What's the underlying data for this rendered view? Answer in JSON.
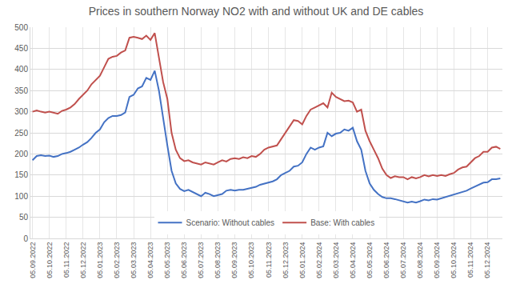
{
  "chart_data": {
    "type": "line",
    "title": "Prices in southern Norway NO2 with and without UK and DE cables",
    "categories": [
      "05.09.2022",
      null,
      null,
      null,
      "05.10.2022",
      null,
      null,
      null,
      "05.11.2022",
      null,
      null,
      null,
      "05.12.2022",
      null,
      null,
      null,
      "05.01.2023",
      null,
      null,
      null,
      "05.02.2023",
      null,
      null,
      null,
      "05.03.2023",
      null,
      null,
      null,
      "05.04.2023",
      null,
      null,
      null,
      "05.05.2023",
      null,
      null,
      null,
      "05.06.2023",
      null,
      null,
      null,
      "05.07.2023",
      null,
      null,
      null,
      "05.08.2023",
      null,
      null,
      null,
      "05.09.2023",
      null,
      null,
      null,
      "05.10.2023",
      null,
      null,
      null,
      "05.11.2023",
      null,
      null,
      null,
      "05.12.2023",
      null,
      null,
      null,
      "05.01.2024",
      null,
      null,
      null,
      "05.02.2024",
      null,
      null,
      null,
      "05.03.2024",
      null,
      null,
      null,
      "05.04.2024",
      null,
      null,
      null,
      "05.05.2024",
      null,
      null,
      null,
      "05.06.2024",
      null,
      null,
      null,
      "05.07.2024",
      null,
      null,
      null,
      "05.08.2024",
      null,
      null,
      null,
      "05.09.2024",
      null,
      null,
      null,
      "05.10.2024",
      null,
      null,
      null,
      "05.11.2024",
      null,
      null,
      null,
      "05.12.2024",
      null,
      null,
      null
    ],
    "series": [
      {
        "name": "Scenario: Without cables",
        "color": "#4472c4",
        "values": [
          185,
          195,
          197,
          195,
          196,
          193,
          195,
          200,
          202,
          205,
          210,
          215,
          222,
          228,
          238,
          250,
          258,
          275,
          285,
          290,
          290,
          292,
          298,
          335,
          340,
          355,
          360,
          380,
          375,
          397,
          350,
          280,
          220,
          160,
          130,
          117,
          112,
          115,
          110,
          105,
          100,
          108,
          105,
          100,
          102,
          105,
          113,
          115,
          113,
          115,
          115,
          117,
          120,
          122,
          127,
          130,
          133,
          135,
          140,
          150,
          155,
          160,
          170,
          172,
          180,
          200,
          215,
          210,
          215,
          218,
          250,
          242,
          248,
          250,
          258,
          255,
          262,
          230,
          210,
          160,
          130,
          115,
          105,
          98,
          95,
          95,
          93,
          90,
          88,
          85,
          87,
          85,
          88,
          92,
          90,
          93,
          92,
          95,
          97,
          100,
          103,
          107,
          110,
          113,
          118,
          123,
          128,
          132,
          133,
          140,
          140,
          142
        ]
      },
      {
        "name": "Base: With cables",
        "color": "#c0504d",
        "values": [
          300,
          303,
          300,
          298,
          300,
          298,
          295,
          302,
          305,
          310,
          318,
          330,
          340,
          350,
          365,
          375,
          385,
          405,
          425,
          430,
          432,
          440,
          445,
          475,
          477,
          475,
          472,
          480,
          470,
          486,
          430,
          370,
          330,
          250,
          210,
          190,
          183,
          185,
          180,
          178,
          175,
          180,
          178,
          175,
          180,
          185,
          182,
          188,
          190,
          188,
          192,
          190,
          195,
          193,
          200,
          210,
          215,
          217,
          220,
          235,
          250,
          265,
          280,
          278,
          270,
          290,
          305,
          310,
          315,
          320,
          310,
          345,
          335,
          330,
          325,
          326,
          322,
          300,
          305,
          255,
          230,
          210,
          190,
          165,
          150,
          143,
          147,
          145,
          145,
          140,
          145,
          142,
          145,
          150,
          147,
          150,
          148,
          150,
          148,
          152,
          155,
          163,
          168,
          170,
          180,
          190,
          195,
          205,
          205,
          215,
          217,
          212
        ]
      }
    ],
    "ylim": [
      0,
      500
    ],
    "yticks": [
      0,
      50,
      100,
      150,
      200,
      250,
      300,
      350,
      400,
      450,
      500
    ],
    "grid": true,
    "legend": "bottom"
  }
}
